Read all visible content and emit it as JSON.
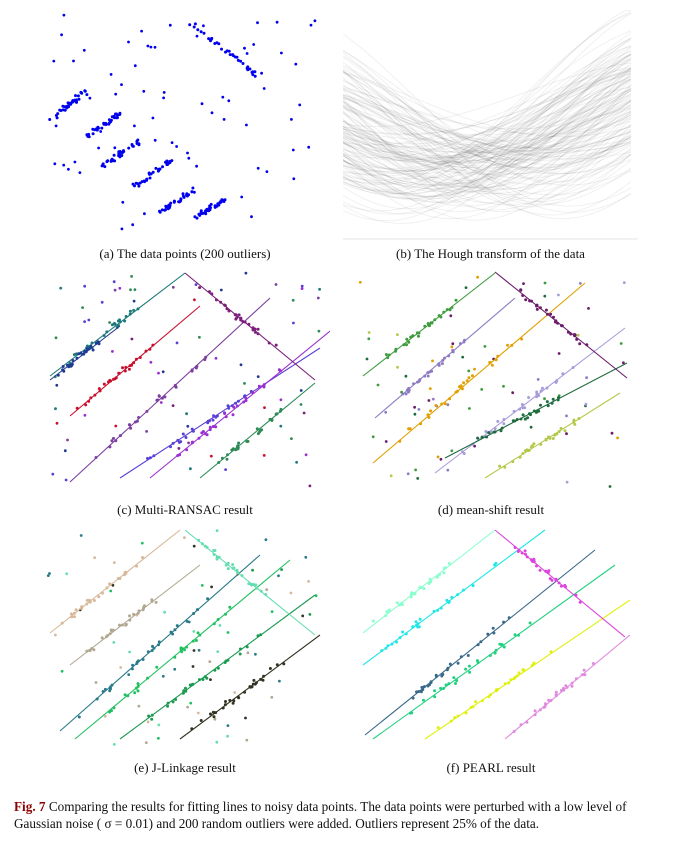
{
  "figure": {
    "panels": [
      {
        "id": "a",
        "caption": "(a) The data points (200 outliers)",
        "point_color": "#0000ee"
      },
      {
        "id": "b",
        "caption": "(b) The Hough transform of the data"
      },
      {
        "id": "c",
        "caption": "(c) Multi-RANSAC result",
        "colors": [
          "#1d7a7a",
          "#c8102e",
          "#7b3fa0",
          "#5a3fd6",
          "#9b2fd0",
          "#2e8b57",
          "#1f3a93",
          "#7a1f7a"
        ]
      },
      {
        "id": "d",
        "caption": "(d) mean-shift result",
        "colors": [
          "#3e9b3e",
          "#8e7cc3",
          "#e0a000",
          "#a89cdb",
          "#1e6b3e",
          "#b5c84a",
          "#6a1b6a"
        ]
      },
      {
        "id": "e",
        "caption": "(e) J-Linkage result",
        "colors": [
          "#d8b89a",
          "#b0a890",
          "#2a7a8a",
          "#22c060",
          "#1a9a50",
          "#333322",
          "#66ddb0"
        ]
      },
      {
        "id": "f",
        "caption": "(f) PEARL result",
        "colors": [
          "#88ffcc",
          "#22e6e6",
          "#3a6a8a",
          "#22d080",
          "#e0f010",
          "#e08ae0",
          "#dd44dd"
        ]
      }
    ],
    "caption_label": "Fig. 7",
    "caption_text": "Comparing the results for fitting lines to noisy data points. The data points were perturbed with a low level of Gaussian noise ( σ = 0.01) and 200 random outliers were added. Outliers represent 25% of the data."
  }
}
